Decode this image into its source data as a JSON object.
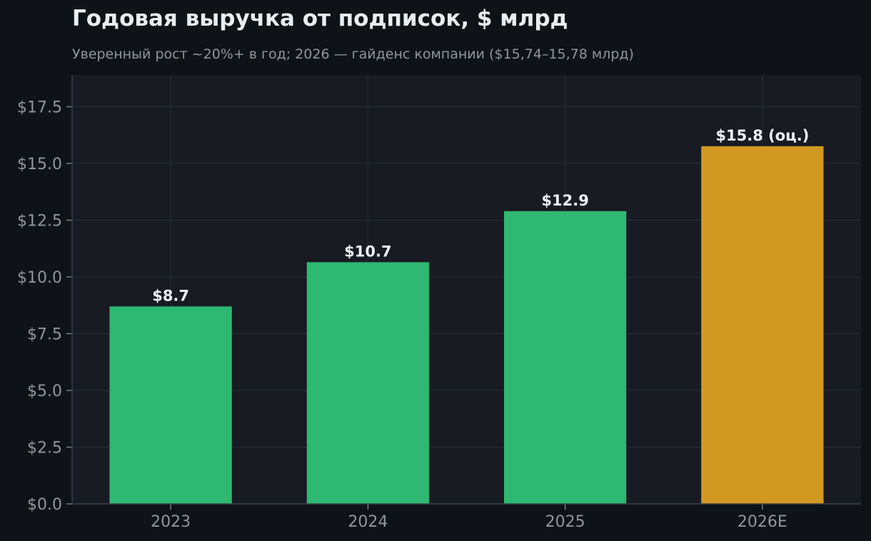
{
  "chart_data": {
    "type": "bar",
    "title": "Годовая выручка от подписок, $ млрд",
    "subtitle": "Уверенный рост ~20%+ в год; 2026 — гайденс компании ($15,74–15,78 млрд)",
    "xlabel": "",
    "ylabel": "",
    "categories": [
      "2023",
      "2024",
      "2025",
      "2026E"
    ],
    "values": [
      8.7,
      10.65,
      12.9,
      15.76
    ],
    "data_labels": [
      "$8.7",
      "$10.7",
      "$12.9",
      "$15.8 (оц.)"
    ],
    "ylim": [
      0,
      18.9
    ],
    "yticks": [
      0,
      2.5,
      5,
      7.5,
      10,
      12.5,
      15,
      17.5
    ],
    "ytick_labels": [
      "$0.0",
      "$2.5",
      "$5.0",
      "$7.5",
      "$10.0",
      "$12.5",
      "$15.0",
      "$17.5"
    ],
    "grid": true,
    "legend": "none",
    "colors": {
      "actual": "#2eb872",
      "estimate": "#d29922",
      "plot_background": "#181b22",
      "page_background": "#0f1317",
      "grid": "#262b33",
      "axis": "#3a4049"
    },
    "estimate_index": 3
  }
}
